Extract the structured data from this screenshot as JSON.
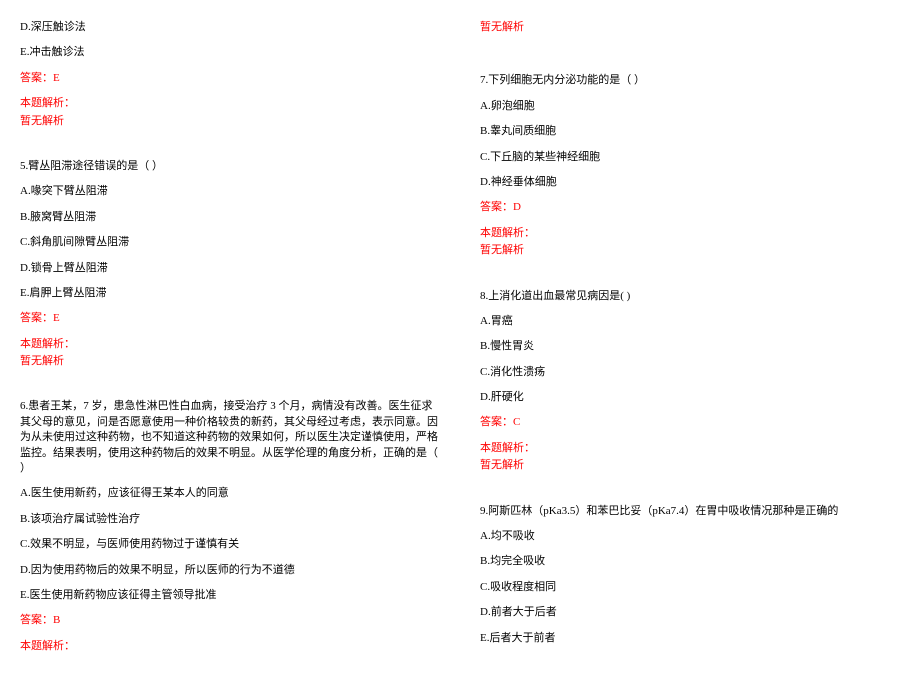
{
  "colors": {
    "text": "#000000",
    "accent": "#ff0000",
    "background": "#ffffff"
  },
  "fontsize": 11,
  "leftColumn": [
    {
      "text": "D.深压触诊法",
      "red": false
    },
    {
      "text": "E.冲击触诊法",
      "red": false
    },
    {
      "text": "答案：E",
      "red": true
    },
    {
      "text": "本题解析：",
      "red": true,
      "tight": true
    },
    {
      "text": "暂无解析",
      "red": true,
      "tight": true
    },
    {
      "spacer": true
    },
    {
      "text": "5.臂丛阻滞途径错误的是（ ）",
      "red": false
    },
    {
      "text": "A.喙突下臂丛阻滞",
      "red": false
    },
    {
      "text": "B.腋窝臂丛阻滞",
      "red": false
    },
    {
      "text": "C.斜角肌间隙臂丛阻滞",
      "red": false
    },
    {
      "text": "D.锁骨上臂丛阻滞",
      "red": false
    },
    {
      "text": "E.肩胛上臂丛阻滞",
      "red": false
    },
    {
      "text": "答案：E",
      "red": true
    },
    {
      "text": "本题解析：",
      "red": true,
      "tight": true
    },
    {
      "text": "暂无解析",
      "red": true,
      "tight": true
    },
    {
      "spacer": true
    },
    {
      "text": "6.患者王某，7 岁，患急性淋巴性白血病，接受治疗 3 个月，病情没有改善。医生征求其父母的意见，问是否愿意使用一种价格较贵的新药，其父母经过考虑，表示同意。因为从未使用过这种药物，也不知道这种药物的效果如何，所以医生决定谨慎使用，严格监控。结果表明，使用这种药物后的效果不明显。从医学伦理的角度分析，正确的是（ ）",
      "red": false
    },
    {
      "text": "A.医生使用新药，应该征得王某本人的同意",
      "red": false
    },
    {
      "text": "B.该项治疗属试验性治疗",
      "red": false
    },
    {
      "text": "C.效果不明显，与医师使用药物过于谨慎有关",
      "red": false
    },
    {
      "text": "D.因为使用药物后的效果不明显，所以医师的行为不道德",
      "red": false
    },
    {
      "text": "E.医生使用新药物应该征得主管领导批准",
      "red": false
    },
    {
      "text": "答案：B",
      "red": true
    },
    {
      "text": "本题解析：",
      "red": true
    }
  ],
  "rightColumn": [
    {
      "text": "暂无解析",
      "red": true
    },
    {
      "spacer": true
    },
    {
      "text": "7.下列细胞无内分泌功能的是（ ）",
      "red": false
    },
    {
      "text": "A.卵泡细胞",
      "red": false
    },
    {
      "text": "B.睾丸间质细胞",
      "red": false
    },
    {
      "text": "C.下丘脑的某些神经细胞",
      "red": false
    },
    {
      "text": "D.神经垂体细胞",
      "red": false
    },
    {
      "text": "答案：D",
      "red": true
    },
    {
      "text": "本题解析：",
      "red": true,
      "tight": true
    },
    {
      "text": "暂无解析",
      "red": true,
      "tight": true
    },
    {
      "spacer": true
    },
    {
      "text": "8.上消化道出血最常见病因是( )",
      "red": false
    },
    {
      "text": "A.胃癌",
      "red": false
    },
    {
      "text": "B.慢性胃炎",
      "red": false
    },
    {
      "text": "C.消化性溃疡",
      "red": false
    },
    {
      "text": "D.肝硬化",
      "red": false
    },
    {
      "text": "答案：C",
      "red": true
    },
    {
      "text": "本题解析：",
      "red": true,
      "tight": true
    },
    {
      "text": "暂无解析",
      "red": true,
      "tight": true
    },
    {
      "spacer": true
    },
    {
      "text": "9.阿斯匹林（pKa3.5）和苯巴比妥（pKa7.4）在胃中吸收情况那种是正确的",
      "red": false
    },
    {
      "text": "A.均不吸收",
      "red": false
    },
    {
      "text": "B.均完全吸收",
      "red": false
    },
    {
      "text": "C.吸收程度相同",
      "red": false
    },
    {
      "text": "D.前者大于后者",
      "red": false
    },
    {
      "text": "E.后者大于前者",
      "red": false
    }
  ]
}
